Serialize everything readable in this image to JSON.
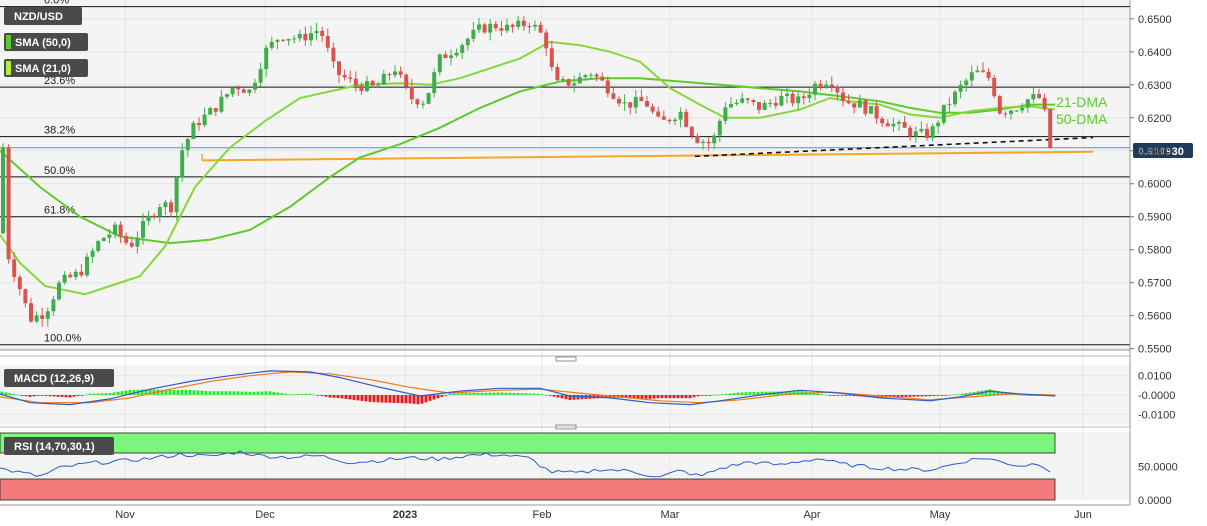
{
  "chart_data": {
    "type": "candlestick",
    "symbol": "NZD/USD",
    "indicators": {
      "sma50_label": "SMA (50,0)",
      "sma21_label": "SMA (21,0)",
      "macd_label": "MACD (12,26,9)",
      "rsi_label": "RSI (14,70,30,1)"
    },
    "fib_levels": [
      {
        "label": "0.0%",
        "value": 0.6537
      },
      {
        "label": "23.6%",
        "value": 0.6293
      },
      {
        "label": "38.2%",
        "value": 0.6143
      },
      {
        "label": "50.0%",
        "value": 0.6021
      },
      {
        "label": "61.8%",
        "value": 0.59
      },
      {
        "label": "100.0%",
        "value": 0.5512
      }
    ],
    "current_price": "0.610930",
    "price_axis": {
      "ticks": [
        "0.6500",
        "0.6400",
        "0.6300",
        "0.6200",
        "0.6100",
        "0.6000",
        "0.5900",
        "0.5800",
        "0.5700",
        "0.5600",
        "0.5500"
      ],
      "ylim": [
        0.5505,
        0.6545
      ]
    },
    "macd_axis": {
      "ticks": [
        "0.0100",
        "-0.0000",
        "-0.0100"
      ]
    },
    "rsi_axis": {
      "ticks": [
        "50.0000",
        "0.0000"
      ]
    },
    "x_labels": [
      "Nov",
      "Dec",
      "2023",
      "Feb",
      "Mar",
      "Apr",
      "May",
      "Jun"
    ],
    "annotations": {
      "dma21": "21-DMA",
      "dma50": "50-DMA"
    },
    "sma21_points": [
      [
        0,
        0.5845
      ],
      [
        20,
        0.576
      ],
      [
        45,
        0.569
      ],
      [
        85,
        0.5665
      ],
      [
        110,
        0.569
      ],
      [
        140,
        0.572
      ],
      [
        165,
        0.581
      ],
      [
        195,
        0.599
      ],
      [
        230,
        0.611
      ],
      [
        265,
        0.619
      ],
      [
        300,
        0.626
      ],
      [
        330,
        0.628
      ],
      [
        360,
        0.63
      ],
      [
        400,
        0.6305
      ],
      [
        430,
        0.63
      ],
      [
        460,
        0.632
      ],
      [
        490,
        0.635
      ],
      [
        520,
        0.638
      ],
      [
        550,
        0.643
      ],
      [
        580,
        0.642
      ],
      [
        610,
        0.64
      ],
      [
        640,
        0.637
      ],
      [
        670,
        0.629
      ],
      [
        700,
        0.624
      ],
      [
        725,
        0.62
      ],
      [
        760,
        0.62
      ],
      [
        800,
        0.6225
      ],
      [
        830,
        0.626
      ],
      [
        850,
        0.625
      ],
      [
        880,
        0.624
      ],
      [
        910,
        0.621
      ],
      [
        940,
        0.62
      ],
      [
        970,
        0.622
      ],
      [
        1000,
        0.623
      ],
      [
        1030,
        0.6235
      ],
      [
        1055,
        0.6225
      ]
    ],
    "sma50_points": [
      [
        0,
        0.61
      ],
      [
        40,
        0.599
      ],
      [
        80,
        0.59
      ],
      [
        120,
        0.584
      ],
      [
        170,
        0.582
      ],
      [
        210,
        0.583
      ],
      [
        250,
        0.586
      ],
      [
        290,
        0.593
      ],
      [
        330,
        0.602
      ],
      [
        360,
        0.608
      ],
      [
        400,
        0.612
      ],
      [
        440,
        0.617
      ],
      [
        480,
        0.623
      ],
      [
        520,
        0.628
      ],
      [
        560,
        0.631
      ],
      [
        600,
        0.632
      ],
      [
        640,
        0.632
      ],
      [
        680,
        0.631
      ],
      [
        720,
        0.63
      ],
      [
        760,
        0.629
      ],
      [
        800,
        0.628
      ],
      [
        840,
        0.6265
      ],
      [
        880,
        0.625
      ],
      [
        910,
        0.623
      ],
      [
        940,
        0.6215
      ],
      [
        970,
        0.6215
      ],
      [
        1000,
        0.6225
      ],
      [
        1030,
        0.624
      ],
      [
        1055,
        0.624
      ]
    ],
    "macd_line": [
      [
        0,
        0.0005
      ],
      [
        30,
        -0.004
      ],
      [
        70,
        -0.005
      ],
      [
        110,
        -0.002
      ],
      [
        150,
        0.003
      ],
      [
        190,
        0.007
      ],
      [
        230,
        0.01
      ],
      [
        270,
        0.0125
      ],
      [
        310,
        0.012
      ],
      [
        340,
        0.009
      ],
      [
        380,
        0.004
      ],
      [
        420,
        -0.0005
      ],
      [
        460,
        0.002
      ],
      [
        500,
        0.0035
      ],
      [
        540,
        0.0035
      ],
      [
        570,
        -0.0005
      ],
      [
        610,
        -0.0015
      ],
      [
        650,
        -0.004
      ],
      [
        690,
        -0.005
      ],
      [
        720,
        -0.003
      ],
      [
        760,
        0
      ],
      [
        800,
        0.0025
      ],
      [
        840,
        0.001
      ],
      [
        880,
        -0.0015
      ],
      [
        930,
        -0.003
      ],
      [
        960,
        -0.001
      ],
      [
        990,
        0.002
      ],
      [
        1020,
        0.0005
      ],
      [
        1055,
        -0.0005
      ]
    ],
    "macd_signal": [
      [
        0,
        -0.001
      ],
      [
        40,
        -0.004
      ],
      [
        90,
        -0.004
      ],
      [
        130,
        -0.0015
      ],
      [
        170,
        0.003
      ],
      [
        210,
        0.007
      ],
      [
        250,
        0.01
      ],
      [
        290,
        0.012
      ],
      [
        330,
        0.011
      ],
      [
        370,
        0.008
      ],
      [
        410,
        0.004
      ],
      [
        450,
        0.001
      ],
      [
        500,
        0.0025
      ],
      [
        540,
        0.003
      ],
      [
        580,
        0.001
      ],
      [
        620,
        -0.001
      ],
      [
        660,
        -0.003
      ],
      [
        700,
        -0.004
      ],
      [
        740,
        -0.0025
      ],
      [
        790,
        0.0005
      ],
      [
        830,
        0.0015
      ],
      [
        880,
        -0.0005
      ],
      [
        930,
        -0.0025
      ],
      [
        970,
        -0.001
      ],
      [
        1010,
        0.0005
      ],
      [
        1055,
        0.0
      ]
    ],
    "rsi_points": [
      [
        0,
        47
      ],
      [
        20,
        41
      ],
      [
        40,
        35
      ],
      [
        60,
        48
      ],
      [
        90,
        55
      ],
      [
        120,
        58
      ],
      [
        150,
        62
      ],
      [
        180,
        68
      ],
      [
        210,
        65
      ],
      [
        240,
        72
      ],
      [
        260,
        66
      ],
      [
        290,
        64
      ],
      [
        320,
        66
      ],
      [
        350,
        56
      ],
      [
        380,
        59
      ],
      [
        410,
        63
      ],
      [
        440,
        61
      ],
      [
        470,
        67
      ],
      [
        500,
        68
      ],
      [
        530,
        62
      ],
      [
        550,
        42
      ],
      [
        580,
        40
      ],
      [
        600,
        46
      ],
      [
        630,
        43
      ],
      [
        660,
        34
      ],
      [
        680,
        44
      ],
      [
        700,
        35
      ],
      [
        720,
        47
      ],
      [
        750,
        57
      ],
      [
        780,
        52
      ],
      [
        800,
        58
      ],
      [
        820,
        62
      ],
      [
        840,
        54
      ],
      [
        870,
        49
      ],
      [
        900,
        46
      ],
      [
        930,
        45
      ],
      [
        950,
        52
      ],
      [
        970,
        60
      ],
      [
        985,
        63
      ],
      [
        1000,
        57
      ],
      [
        1020,
        51
      ],
      [
        1040,
        55
      ],
      [
        1055,
        38
      ]
    ]
  }
}
